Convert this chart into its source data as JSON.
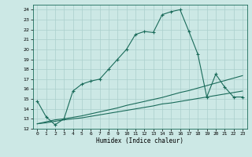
{
  "title": "",
  "xlabel": "Humidex (Indice chaleur)",
  "bg_color": "#cce8e5",
  "line_color": "#1a6b5a",
  "grid_color": "#aacfcc",
  "xlim": [
    -0.5,
    23.5
  ],
  "ylim": [
    12,
    24.5
  ],
  "xticks": [
    0,
    1,
    2,
    3,
    4,
    5,
    6,
    7,
    8,
    9,
    10,
    11,
    12,
    13,
    14,
    15,
    16,
    17,
    18,
    19,
    20,
    21,
    22,
    23
  ],
  "yticks": [
    12,
    13,
    14,
    15,
    16,
    17,
    18,
    19,
    20,
    21,
    22,
    23,
    24
  ],
  "series1_x": [
    0,
    1,
    2,
    3,
    4,
    5,
    6,
    7,
    8,
    9,
    10,
    11,
    12,
    13,
    14,
    15,
    16,
    17,
    18,
    19,
    20,
    21,
    22,
    23
  ],
  "series1_y": [
    14.8,
    13.2,
    12.4,
    13.0,
    15.8,
    16.5,
    16.8,
    17.0,
    18.0,
    19.0,
    20.0,
    21.5,
    21.8,
    21.7,
    23.5,
    23.8,
    24.0,
    21.8,
    19.5,
    15.2,
    17.5,
    16.2,
    15.2,
    15.2
  ],
  "series2_x": [
    0,
    1,
    2,
    3,
    4,
    5,
    6,
    7,
    8,
    9,
    10,
    11,
    12,
    13,
    14,
    15,
    16,
    17,
    18,
    19,
    20,
    21,
    22,
    23
  ],
  "series2_y": [
    12.5,
    12.7,
    12.9,
    13.0,
    13.15,
    13.3,
    13.5,
    13.7,
    13.9,
    14.1,
    14.35,
    14.55,
    14.75,
    14.95,
    15.15,
    15.4,
    15.65,
    15.85,
    16.1,
    16.35,
    16.6,
    16.85,
    17.1,
    17.35
  ],
  "series3_x": [
    0,
    1,
    2,
    3,
    4,
    5,
    6,
    7,
    8,
    9,
    10,
    11,
    12,
    13,
    14,
    15,
    16,
    17,
    18,
    19,
    20,
    21,
    22,
    23
  ],
  "series3_y": [
    12.5,
    12.6,
    12.75,
    12.9,
    13.0,
    13.1,
    13.25,
    13.4,
    13.55,
    13.7,
    13.85,
    14.0,
    14.15,
    14.3,
    14.5,
    14.6,
    14.75,
    14.9,
    15.05,
    15.2,
    15.35,
    15.5,
    15.65,
    15.8
  ]
}
